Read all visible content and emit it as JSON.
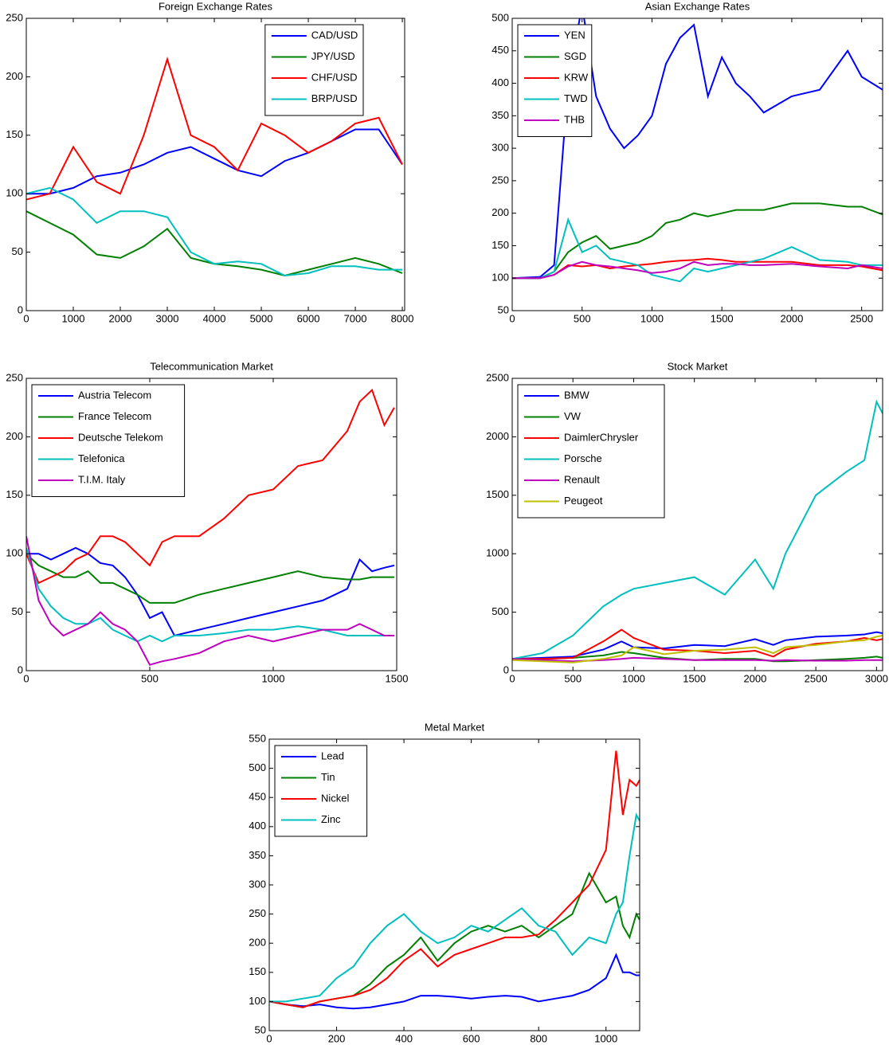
{
  "chart_data": [
    {
      "type": "line",
      "title": "Foreign Exchange Rates",
      "legend": "upper right",
      "xlim": [
        0,
        8050
      ],
      "xticks": [
        0,
        1000,
        2000,
        3000,
        4000,
        5000,
        6000,
        7000,
        8000
      ],
      "ylim": [
        0,
        250
      ],
      "yticks": [
        0,
        50,
        100,
        150,
        200,
        250
      ],
      "x": [
        0,
        500,
        1000,
        1500,
        2000,
        2500,
        3000,
        3500,
        4000,
        4500,
        5000,
        5500,
        6000,
        6500,
        7000,
        7500,
        8000
      ],
      "series": [
        {
          "name": "CAD/USD",
          "color": "#0000ff",
          "values": [
            100,
            100,
            105,
            115,
            118,
            125,
            135,
            140,
            130,
            120,
            115,
            128,
            135,
            145,
            155,
            155,
            125
          ]
        },
        {
          "name": "JPY/USD",
          "color": "#008000",
          "values": [
            85,
            75,
            65,
            48,
            45,
            55,
            70,
            45,
            40,
            38,
            35,
            30,
            35,
            40,
            45,
            40,
            32
          ]
        },
        {
          "name": "CHF/USD",
          "color": "#ff0000",
          "values": [
            95,
            100,
            140,
            110,
            100,
            150,
            215,
            150,
            140,
            120,
            160,
            150,
            135,
            145,
            160,
            165,
            125
          ]
        },
        {
          "name": "BRP/USD",
          "color": "#00bfbf",
          "values": [
            100,
            105,
            95,
            75,
            85,
            85,
            80,
            50,
            40,
            42,
            40,
            30,
            32,
            38,
            38,
            35,
            35
          ]
        }
      ]
    },
    {
      "type": "line",
      "title": "Asian Exchange Rates",
      "legend": "upper left",
      "xlim": [
        0,
        2650
      ],
      "xticks": [
        0,
        500,
        1000,
        1500,
        2000,
        2500
      ],
      "ylim": [
        50,
        500
      ],
      "yticks": [
        50,
        100,
        150,
        200,
        250,
        300,
        350,
        400,
        450,
        500
      ],
      "x": [
        0,
        200,
        300,
        400,
        500,
        600,
        700,
        800,
        900,
        1000,
        1100,
        1200,
        1300,
        1400,
        1500,
        1600,
        1700,
        1800,
        2000,
        2200,
        2400,
        2500,
        2650
      ],
      "series": [
        {
          "name": "YEN",
          "color": "#0000ff",
          "values": [
            100,
            102,
            120,
            400,
            520,
            380,
            330,
            300,
            320,
            350,
            430,
            470,
            490,
            380,
            440,
            400,
            380,
            355,
            380,
            390,
            450,
            410,
            390
          ]
        },
        {
          "name": "SGD",
          "color": "#008000",
          "values": [
            100,
            100,
            110,
            140,
            155,
            165,
            145,
            150,
            155,
            165,
            185,
            190,
            200,
            195,
            200,
            205,
            205,
            205,
            215,
            215,
            210,
            210,
            198
          ]
        },
        {
          "name": "KRW",
          "color": "#ff0000",
          "values": [
            100,
            100,
            105,
            120,
            118,
            120,
            115,
            118,
            120,
            122,
            125,
            127,
            128,
            130,
            128,
            125,
            125,
            125,
            125,
            120,
            120,
            118,
            112
          ]
        },
        {
          "name": "TWD",
          "color": "#00bfbf",
          "values": [
            100,
            100,
            110,
            190,
            140,
            150,
            130,
            125,
            120,
            105,
            100,
            95,
            115,
            110,
            115,
            120,
            125,
            130,
            148,
            128,
            125,
            120,
            120
          ]
        },
        {
          "name": "THB",
          "color": "#bf00bf",
          "values": [
            100,
            100,
            105,
            118,
            125,
            120,
            118,
            115,
            112,
            108,
            110,
            115,
            125,
            120,
            122,
            122,
            120,
            120,
            122,
            118,
            115,
            120,
            115
          ]
        }
      ]
    },
    {
      "type": "line",
      "title": "Telecommunication Market",
      "legend": "upper left",
      "xlim": [
        0,
        1500
      ],
      "xticks": [
        0,
        500,
        1000,
        1500
      ],
      "ylim": [
        0,
        250
      ],
      "yticks": [
        0,
        50,
        100,
        150,
        200,
        250
      ],
      "x": [
        0,
        50,
        100,
        150,
        200,
        250,
        300,
        350,
        400,
        450,
        500,
        550,
        600,
        700,
        800,
        900,
        1000,
        1100,
        1200,
        1300,
        1350,
        1400,
        1450,
        1490
      ],
      "series": [
        {
          "name": "Austria Telecom",
          "color": "#0000ff",
          "values": [
            100,
            100,
            95,
            100,
            105,
            100,
            92,
            90,
            80,
            65,
            45,
            50,
            30,
            35,
            40,
            45,
            50,
            55,
            60,
            70,
            95,
            85,
            88,
            90
          ]
        },
        {
          "name": "France Telecom",
          "color": "#008000",
          "values": [
            100,
            90,
            85,
            80,
            80,
            85,
            75,
            75,
            70,
            65,
            58,
            58,
            58,
            65,
            70,
            75,
            80,
            85,
            80,
            78,
            78,
            80,
            80,
            80
          ]
        },
        {
          "name": "Deutsche Telekom",
          "color": "#ff0000",
          "values": [
            100,
            75,
            80,
            85,
            95,
            100,
            115,
            115,
            110,
            100,
            90,
            110,
            115,
            115,
            130,
            150,
            155,
            175,
            180,
            205,
            230,
            240,
            210,
            225
          ]
        },
        {
          "name": "Telefonica",
          "color": "#00bfbf",
          "values": [
            105,
            70,
            55,
            45,
            40,
            40,
            45,
            35,
            30,
            25,
            30,
            25,
            30,
            30,
            32,
            35,
            35,
            38,
            35,
            30,
            30,
            30,
            30,
            30
          ]
        },
        {
          "name": "T.I.M. Italy",
          "color": "#bf00bf",
          "values": [
            115,
            60,
            40,
            30,
            35,
            40,
            50,
            40,
            35,
            25,
            5,
            8,
            10,
            15,
            25,
            30,
            25,
            30,
            35,
            35,
            40,
            35,
            30,
            30
          ]
        }
      ]
    },
    {
      "type": "line",
      "title": "Stock Market",
      "legend": "upper left",
      "xlim": [
        0,
        3050
      ],
      "xticks": [
        0,
        500,
        1000,
        1500,
        2000,
        2500,
        3000
      ],
      "ylim": [
        0,
        2500
      ],
      "yticks": [
        0,
        500,
        1000,
        1500,
        2000,
        2500
      ],
      "x": [
        0,
        250,
        500,
        750,
        900,
        1000,
        1250,
        1500,
        1750,
        2000,
        2150,
        2250,
        2500,
        2750,
        2900,
        3000,
        3050
      ],
      "series": [
        {
          "name": "BMW",
          "color": "#0000ff",
          "values": [
            100,
            110,
            120,
            180,
            250,
            200,
            190,
            220,
            210,
            270,
            220,
            260,
            290,
            300,
            310,
            330,
            320
          ]
        },
        {
          "name": "VW",
          "color": "#008000",
          "values": [
            100,
            100,
            110,
            130,
            160,
            150,
            110,
            90,
            100,
            100,
            80,
            80,
            90,
            100,
            110,
            120,
            110
          ]
        },
        {
          "name": "DaimlerChrysler",
          "color": "#ff0000",
          "values": [
            100,
            100,
            110,
            250,
            350,
            280,
            180,
            170,
            150,
            170,
            120,
            180,
            230,
            250,
            280,
            260,
            270
          ]
        },
        {
          "name": "Porsche",
          "color": "#00bfbf",
          "values": [
            100,
            150,
            300,
            550,
            650,
            700,
            750,
            800,
            650,
            950,
            700,
            1000,
            1500,
            1700,
            1800,
            2300,
            2200
          ]
        },
        {
          "name": "Renault",
          "color": "#bf00bf",
          "values": [
            100,
            90,
            80,
            90,
            100,
            110,
            100,
            90,
            90,
            90,
            85,
            90,
            85,
            85,
            90,
            90,
            90
          ]
        },
        {
          "name": "Peugeot",
          "color": "#bfbf00",
          "values": [
            90,
            80,
            70,
            100,
            130,
            200,
            140,
            170,
            180,
            200,
            150,
            200,
            220,
            250,
            260,
            290,
            300
          ]
        }
      ]
    },
    {
      "type": "line",
      "title": "Metal Market",
      "legend": "upper left",
      "xlim": [
        0,
        1100
      ],
      "xticks": [
        0,
        200,
        400,
        600,
        800,
        1000
      ],
      "ylim": [
        50,
        550
      ],
      "yticks": [
        50,
        100,
        150,
        200,
        250,
        300,
        350,
        400,
        450,
        500,
        550
      ],
      "x": [
        0,
        50,
        100,
        150,
        200,
        250,
        300,
        350,
        400,
        450,
        500,
        550,
        600,
        650,
        700,
        750,
        800,
        850,
        900,
        950,
        1000,
        1030,
        1050,
        1070,
        1090,
        1100
      ],
      "series": [
        {
          "name": "Lead",
          "color": "#0000ff",
          "values": [
            100,
            95,
            92,
            95,
            90,
            88,
            90,
            95,
            100,
            110,
            110,
            108,
            105,
            108,
            110,
            108,
            100,
            105,
            110,
            120,
            140,
            180,
            150,
            150,
            145,
            145
          ]
        },
        {
          "name": "Tin",
          "color": "#008000",
          "values": [
            100,
            95,
            90,
            100,
            105,
            110,
            130,
            160,
            180,
            210,
            170,
            200,
            220,
            230,
            220,
            230,
            210,
            230,
            250,
            320,
            270,
            280,
            230,
            210,
            250,
            240
          ]
        },
        {
          "name": "Nickel",
          "color": "#ff0000",
          "values": [
            100,
            95,
            90,
            100,
            105,
            110,
            120,
            140,
            170,
            190,
            160,
            180,
            190,
            200,
            210,
            210,
            215,
            240,
            270,
            300,
            360,
            530,
            420,
            480,
            470,
            480
          ]
        },
        {
          "name": "Zinc",
          "color": "#00bfbf",
          "values": [
            100,
            100,
            105,
            110,
            140,
            160,
            200,
            230,
            250,
            220,
            200,
            210,
            230,
            220,
            240,
            260,
            230,
            220,
            180,
            210,
            200,
            250,
            270,
            350,
            420,
            410
          ]
        }
      ]
    }
  ]
}
